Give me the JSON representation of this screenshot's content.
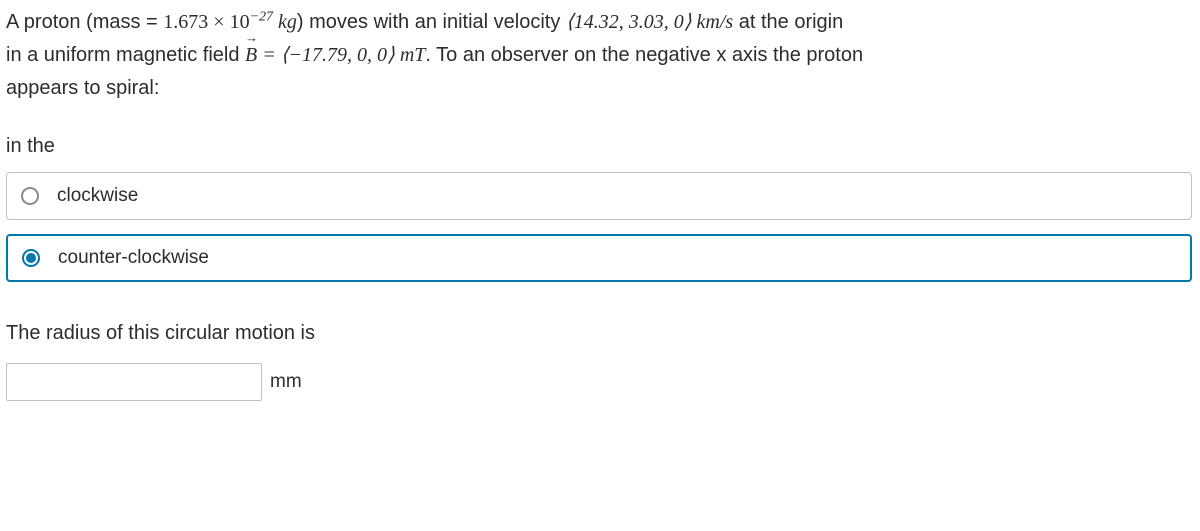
{
  "problem": {
    "line1_a": "A proton (mass = ",
    "mass_value": "1.673 × 10",
    "mass_exp": "−27",
    "line1_b": " kg",
    "line1_c": ") moves with an initial velocity ",
    "vel_vec": "⟨14.32, 3.03, 0⟩  km/s",
    "line1_d": " at the origin",
    "line2_a": "in a uniform magnetic field ",
    "B_letter": "B",
    "eq": " = ",
    "B_vec": "⟨−17.79, 0, 0⟩  mT",
    "line2_b": ". To an observer on the negative x axis the proton",
    "line3": "appears to spiral:"
  },
  "direction_label": "in the",
  "options": {
    "cw": "clockwise",
    "ccw": "counter-clockwise"
  },
  "selected": "ccw",
  "radius_label": "The radius of this circular motion is",
  "radius_unit": "mm",
  "radius_value": ""
}
